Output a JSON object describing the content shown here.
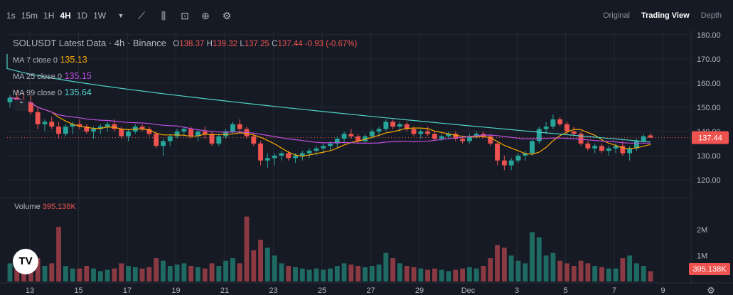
{
  "toolbar": {
    "timeframes": [
      "1s",
      "15m",
      "1H",
      "4H",
      "1D",
      "1W"
    ],
    "active_timeframe": "4H",
    "views": [
      "Original",
      "Trading View",
      "Depth"
    ],
    "active_view": "Trading View"
  },
  "legend": {
    "title": "SOLUSDT Latest Data · 4h · Binance",
    "open_label": "O",
    "open": "138.37",
    "high_label": "H",
    "high": "139.32",
    "low_label": "L",
    "low": "137.25",
    "close_label": "C",
    "close": "137.44",
    "change": "-0.93 (-0.67%)",
    "ma7_label": "MA 7 close 0",
    "ma7": "135.13",
    "ma25_label": "MA 25 close 0",
    "ma25": "135.15",
    "ma99_label": "MA 99 close 0",
    "ma99": "135.64"
  },
  "volume": {
    "label": "Volume",
    "value": "395.138K"
  },
  "logo_text": "TV",
  "colors": {
    "up": "#26a69a",
    "down": "#ef5350",
    "ma7": "#f7a600",
    "ma25": "#bd4ee0",
    "ma99": "#4fd1c5",
    "bg": "#161a25"
  },
  "chart_data": {
    "type": "candlestick",
    "price_axis_ticks": [
      "180.00",
      "170.00",
      "160.00",
      "150.00",
      "140.00",
      "130.00",
      "120.00"
    ],
    "price_range": [
      115,
      182
    ],
    "volume_axis_ticks": [
      "2M",
      "1M"
    ],
    "volume_range": [
      0,
      2900000
    ],
    "x_tick_labels": [
      "13",
      "15",
      "17",
      "19",
      "21",
      "23",
      "25",
      "27",
      "29",
      "Dec",
      "3",
      "5",
      "7",
      "9"
    ],
    "last_price": "137.44",
    "last_volume": "395.138K",
    "candles": [
      [
        152,
        155,
        150,
        154,
        700000
      ],
      [
        154,
        157,
        151,
        153,
        500000
      ],
      [
        153,
        156,
        150,
        152,
        600000
      ],
      [
        152,
        155,
        147,
        148,
        800000
      ],
      [
        148,
        150,
        141,
        143,
        900000
      ],
      [
        143,
        145,
        140,
        144,
        600000
      ],
      [
        144,
        146,
        141,
        142,
        700000
      ],
      [
        142,
        144,
        137,
        139,
        2100000
      ],
      [
        139,
        143,
        138,
        142,
        600000
      ],
      [
        142,
        144,
        139,
        143,
        500000
      ],
      [
        143,
        145,
        141,
        142,
        500000
      ],
      [
        142,
        143,
        139,
        140,
        600000
      ],
      [
        140,
        142,
        137,
        141,
        500000
      ],
      [
        141,
        143,
        139,
        142,
        400000
      ],
      [
        142,
        144,
        140,
        143,
        450000
      ],
      [
        143,
        145,
        140,
        141,
        500000
      ],
      [
        141,
        142,
        137,
        138,
        700000
      ],
      [
        138,
        141,
        136,
        140,
        600000
      ],
      [
        140,
        143,
        139,
        142,
        550000
      ],
      [
        142,
        143,
        140,
        141,
        500000
      ],
      [
        141,
        142,
        138,
        139,
        550000
      ],
      [
        139,
        140,
        133,
        134,
        900000
      ],
      [
        134,
        137,
        130,
        136,
        800000
      ],
      [
        136,
        139,
        134,
        138,
        600000
      ],
      [
        138,
        141,
        137,
        140,
        650000
      ],
      [
        140,
        142,
        138,
        141,
        700000
      ],
      [
        141,
        142,
        137,
        138,
        600000
      ],
      [
        138,
        141,
        136,
        140,
        550000
      ],
      [
        140,
        142,
        137,
        139,
        500000
      ],
      [
        139,
        140,
        134,
        135,
        700000
      ],
      [
        135,
        139,
        134,
        138,
        600000
      ],
      [
        138,
        141,
        137,
        140,
        800000
      ],
      [
        140,
        144,
        139,
        143,
        900000
      ],
      [
        143,
        145,
        140,
        141,
        700000
      ],
      [
        141,
        142,
        137,
        138,
        2500000
      ],
      [
        138,
        139,
        134,
        135,
        1200000
      ],
      [
        135,
        136,
        126,
        128,
        1600000
      ],
      [
        128,
        131,
        125,
        129,
        1300000
      ],
      [
        129,
        131,
        126,
        130,
        1000000
      ],
      [
        130,
        132,
        128,
        131,
        700000
      ],
      [
        131,
        132,
        128,
        129,
        600000
      ],
      [
        129,
        131,
        127,
        130,
        550000
      ],
      [
        130,
        132,
        128,
        131,
        500000
      ],
      [
        131,
        133,
        129,
        132,
        450000
      ],
      [
        132,
        134,
        130,
        133,
        500000
      ],
      [
        133,
        135,
        131,
        134,
        450000
      ],
      [
        134,
        136,
        132,
        135,
        500000
      ],
      [
        135,
        138,
        133,
        137,
        600000
      ],
      [
        137,
        140,
        135,
        139,
        700000
      ],
      [
        139,
        141,
        137,
        138,
        650000
      ],
      [
        138,
        139,
        135,
        136,
        600000
      ],
      [
        136,
        139,
        135,
        138,
        550000
      ],
      [
        138,
        141,
        137,
        140,
        600000
      ],
      [
        140,
        142,
        138,
        141,
        650000
      ],
      [
        141,
        145,
        140,
        144,
        1100000
      ],
      [
        144,
        145,
        141,
        142,
        900000
      ],
      [
        142,
        144,
        140,
        143,
        700000
      ],
      [
        143,
        144,
        140,
        141,
        600000
      ],
      [
        141,
        142,
        138,
        139,
        550000
      ],
      [
        139,
        141,
        137,
        140,
        500000
      ],
      [
        140,
        142,
        138,
        139,
        450000
      ],
      [
        139,
        140,
        136,
        137,
        500000
      ],
      [
        137,
        139,
        136,
        138,
        450000
      ],
      [
        138,
        140,
        137,
        139,
        400000
      ],
      [
        139,
        140,
        136,
        137,
        450000
      ],
      [
        137,
        138,
        135,
        136,
        500000
      ],
      [
        136,
        139,
        135,
        138,
        550000
      ],
      [
        138,
        140,
        137,
        139,
        500000
      ],
      [
        139,
        140,
        137,
        138,
        600000
      ],
      [
        138,
        139,
        134,
        135,
        900000
      ],
      [
        135,
        136,
        126,
        128,
        1400000
      ],
      [
        128,
        130,
        124,
        126,
        1300000
      ],
      [
        126,
        129,
        124,
        128,
        1000000
      ],
      [
        128,
        131,
        127,
        130,
        800000
      ],
      [
        130,
        132,
        128,
        131,
        700000
      ],
      [
        131,
        137,
        130,
        136,
        1900000
      ],
      [
        136,
        142,
        135,
        141,
        1700000
      ],
      [
        141,
        144,
        139,
        142,
        1000000
      ],
      [
        142,
        147,
        141,
        145,
        1100000
      ],
      [
        145,
        146,
        142,
        143,
        800000
      ],
      [
        143,
        144,
        139,
        140,
        700000
      ],
      [
        140,
        142,
        138,
        139,
        600000
      ],
      [
        139,
        140,
        134,
        135,
        800000
      ],
      [
        135,
        136,
        132,
        133,
        700000
      ],
      [
        133,
        135,
        131,
        134,
        600000
      ],
      [
        134,
        135,
        131,
        132,
        550000
      ],
      [
        132,
        134,
        130,
        133,
        500000
      ],
      [
        133,
        135,
        131,
        134,
        500000
      ],
      [
        134,
        136,
        130,
        131,
        900000
      ],
      [
        131,
        134,
        128,
        133,
        1000000
      ],
      [
        133,
        137,
        132,
        136,
        700000
      ],
      [
        136,
        139,
        135,
        138,
        600000
      ],
      [
        138.37,
        139.32,
        137.25,
        137.44,
        395138
      ]
    ],
    "ma7": [],
    "ma25": [],
    "ma99_start": 166,
    "ma99_end": 135.64
  }
}
